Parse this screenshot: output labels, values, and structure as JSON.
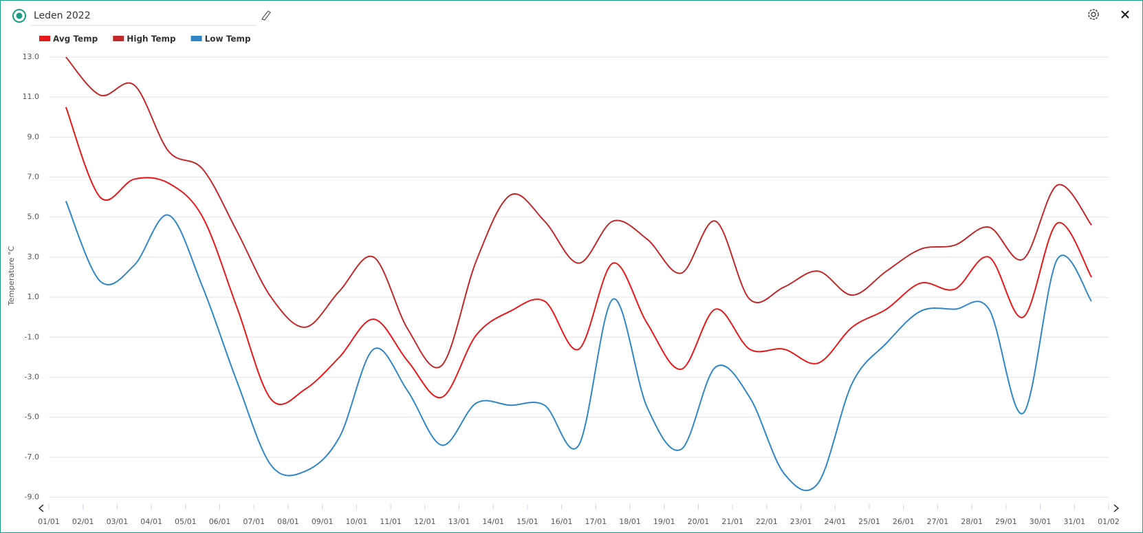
{
  "chart_data": {
    "type": "line",
    "title": "Leden 2022",
    "y_label": "Temperature °C",
    "x": [
      0.5,
      1.5,
      2.5,
      3.5,
      4.5,
      5.5,
      6.5,
      7.5,
      8.5,
      9.5,
      10.5,
      11.5,
      12.5,
      13.5,
      14.5,
      15.5,
      16.5,
      17.5,
      18.5,
      19.5,
      20.5,
      21.5,
      22.5,
      23.5,
      24.5,
      25.5,
      26.5,
      27.5,
      28.5,
      29.5,
      30.5
    ],
    "xlim": [
      0,
      31
    ],
    "xticks": [
      {
        "value": 0,
        "label": "01/01"
      },
      {
        "value": 1,
        "label": "02/01"
      },
      {
        "value": 2,
        "label": "03/01"
      },
      {
        "value": 3,
        "label": "04/01"
      },
      {
        "value": 4,
        "label": "05/01"
      },
      {
        "value": 5,
        "label": "06/01"
      },
      {
        "value": 6,
        "label": "07/01"
      },
      {
        "value": 7,
        "label": "08/01"
      },
      {
        "value": 8,
        "label": "09/01"
      },
      {
        "value": 9,
        "label": "10/01"
      },
      {
        "value": 10,
        "label": "11/01"
      },
      {
        "value": 11,
        "label": "12/01"
      },
      {
        "value": 12,
        "label": "13/01"
      },
      {
        "value": 13,
        "label": "14/01"
      },
      {
        "value": 14,
        "label": "15/01"
      },
      {
        "value": 15,
        "label": "16/01"
      },
      {
        "value": 16,
        "label": "17/01"
      },
      {
        "value": 17,
        "label": "18/01"
      },
      {
        "value": 18,
        "label": "19/01"
      },
      {
        "value": 19,
        "label": "20/01"
      },
      {
        "value": 20,
        "label": "21/01"
      },
      {
        "value": 21,
        "label": "22/01"
      },
      {
        "value": 22,
        "label": "23/01"
      },
      {
        "value": 23,
        "label": "24/01"
      },
      {
        "value": 24,
        "label": "25/01"
      },
      {
        "value": 25,
        "label": "26/01"
      },
      {
        "value": 26,
        "label": "27/01"
      },
      {
        "value": 27,
        "label": "28/01"
      },
      {
        "value": 28,
        "label": "29/01"
      },
      {
        "value": 29,
        "label": "30/01"
      },
      {
        "value": 30,
        "label": "31/01"
      },
      {
        "value": 31,
        "label": "01/02"
      }
    ],
    "ylim": [
      -9,
      13
    ],
    "yticks": [
      {
        "value": -9,
        "label": "-9.0"
      },
      {
        "value": -7,
        "label": "-7.0"
      },
      {
        "value": -5,
        "label": "-5.0"
      },
      {
        "value": -3,
        "label": "-3.0"
      },
      {
        "value": -1,
        "label": "-1.0"
      },
      {
        "value": 1,
        "label": "1.0"
      },
      {
        "value": 3,
        "label": "3.0"
      },
      {
        "value": 5,
        "label": "5.0"
      },
      {
        "value": 7,
        "label": "7.0"
      },
      {
        "value": 9,
        "label": "9.0"
      },
      {
        "value": 11,
        "label": "11.0"
      },
      {
        "value": 13,
        "label": "13.0"
      }
    ],
    "grid": true,
    "series": [
      {
        "name": "Avg Temp",
        "color": "#e8171a",
        "values": [
          10.5,
          6.0,
          6.9,
          6.7,
          5.0,
          0.5,
          -4.1,
          -3.6,
          -2.0,
          -0.1,
          -2.2,
          -4.0,
          -0.9,
          0.3,
          0.8,
          -1.6,
          2.7,
          -0.3,
          -2.6,
          0.4,
          -1.6,
          -1.6,
          -2.3,
          -0.5,
          0.4,
          1.7,
          1.4,
          3.0,
          0.0,
          4.7,
          2.0
        ]
      },
      {
        "name": "High Temp",
        "color": "#c0282b",
        "values": [
          13.0,
          11.1,
          11.6,
          8.3,
          7.4,
          4.3,
          1.0,
          -0.5,
          1.3,
          3.0,
          -0.6,
          -2.4,
          2.8,
          6.1,
          4.8,
          2.7,
          4.8,
          3.9,
          2.2,
          4.8,
          0.9,
          1.5,
          2.3,
          1.1,
          2.3,
          3.4,
          3.6,
          4.5,
          2.9,
          6.6,
          4.6
        ]
      },
      {
        "name": "Low Temp",
        "color": "#2e86c8",
        "values": [
          5.8,
          1.8,
          2.6,
          5.1,
          1.5,
          -3.2,
          -7.4,
          -7.7,
          -6.0,
          -1.6,
          -3.7,
          -6.4,
          -4.3,
          -4.4,
          -4.4,
          -6.4,
          0.9,
          -4.5,
          -6.6,
          -2.5,
          -4.0,
          -7.8,
          -8.3,
          -3.3,
          -1.3,
          0.3,
          0.4,
          0.4,
          -4.8,
          2.9,
          0.8
        ]
      }
    ]
  }
}
